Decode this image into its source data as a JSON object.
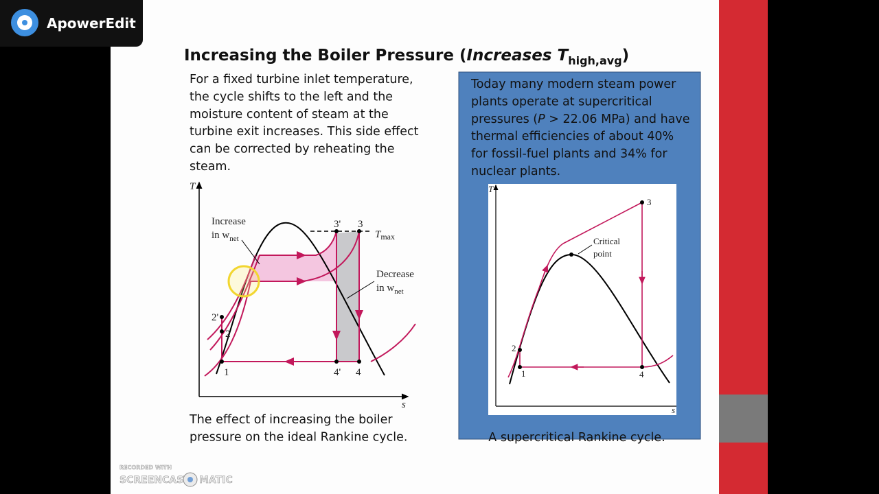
{
  "app_badge": {
    "name": "ApowerEdit"
  },
  "slide": {
    "title": {
      "text": "Increasing the Boiler Pressure (",
      "emphasis": "Increases T",
      "subscript": "high,avg",
      "close": ")"
    },
    "left_text": [
      "For a fixed turbine inlet temperature,",
      "the cycle shifts to the left and the",
      "moisture content of steam at the",
      "turbine exit increases. This side effect",
      "can be corrected by reheating the",
      "steam."
    ],
    "left_figure": {
      "y_axis": "T",
      "x_axis": "s",
      "increase": "Increase",
      "increase_in": "in w",
      "increase_sub": "net",
      "decrease": "Decrease",
      "decrease_in": "in w",
      "decrease_sub": "net",
      "tmax": "T",
      "tmax_sub": "max",
      "points": [
        "3'",
        "3",
        "2'",
        "2",
        "1",
        "4'",
        "4"
      ]
    },
    "left_caption": [
      "The effect of increasing the boiler",
      "pressure on the ideal Rankine cycle."
    ],
    "right_box": {
      "lines": [
        [
          "Today many modern steam power"
        ],
        [
          "plants operate at supercritical"
        ],
        [
          "pressures (",
          "P",
          " > 22.06 MPa) and have"
        ],
        [
          "thermal efficiencies of about 40%"
        ],
        [
          "for  fossil-fuel plants and 34% for"
        ],
        [
          "nuclear  plants."
        ]
      ],
      "figure": {
        "y_axis": "T",
        "x_axis": "s",
        "critical": "Critical",
        "point": "point",
        "points": [
          "3",
          "2",
          "1",
          "4"
        ]
      },
      "caption": "A supercritical Rankine cycle."
    }
  },
  "watermark": {
    "recorded": "RECORDED WITH",
    "brand": "SCREENCAST",
    "suffix": "MATIC"
  }
}
